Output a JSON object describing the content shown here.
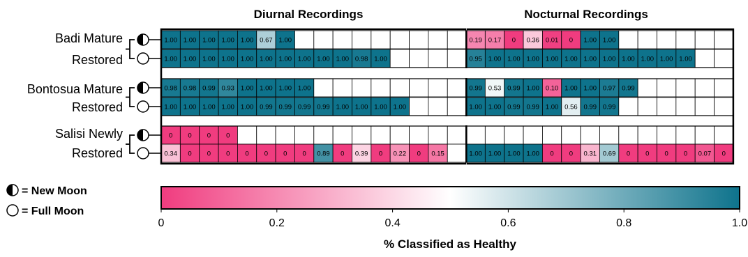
{
  "chart_data": {
    "type": "heatmap",
    "panel_titles": [
      "Diurnal Recordings",
      "Nocturnal Recordings"
    ],
    "groups": [
      {
        "label_top": "Badi Mature",
        "label_bottom": "Restored"
      },
      {
        "label_top": "Bontosua Mature",
        "label_bottom": "Restored"
      },
      {
        "label_top": "Salisi Newly",
        "label_bottom": "Restored"
      }
    ],
    "legend": {
      "new_moon": "= New Moon",
      "full_moon": "= Full Moon"
    },
    "colorbar": {
      "label": "% Classified as Healthy",
      "ticks": [
        "0",
        "0.2",
        "0.4",
        "0.6",
        "0.8",
        "1.0"
      ],
      "colors": {
        "low": "#f03c7f",
        "mid": "#ffffff",
        "high": "#0e738c"
      }
    },
    "rows": [
      {
        "site": "Badi",
        "moon": "new",
        "diurnal": [
          "1.00",
          "1.00",
          "1.00",
          "1.00",
          "1.00",
          "0.67",
          "1.00"
        ],
        "nocturnal": [
          "0.19",
          "0.17",
          "0",
          "0.36",
          "0.01",
          "0",
          "1.00",
          "1.00"
        ]
      },
      {
        "site": "Badi",
        "moon": "full",
        "diurnal": [
          "1.00",
          "1.00",
          "1.00",
          "1.00",
          "1.00",
          "1.00",
          "1.00",
          "1.00",
          "1.00",
          "1.00",
          "0.98",
          "1.00"
        ],
        "nocturnal": [
          "0.95",
          "1.00",
          "1.00",
          "1.00",
          "1.00",
          "1.00",
          "1.00",
          "1.00",
          "1.00",
          "1.00",
          "1.00",
          "1.00"
        ]
      },
      {
        "site": "Bontosua",
        "moon": "new",
        "diurnal": [
          "0.98",
          "0.98",
          "0.99",
          "0.93",
          "1.00",
          "1.00",
          "1.00",
          "1.00"
        ],
        "nocturnal": [
          "0.99",
          "0.53",
          "0.99",
          "1.00",
          "0.10",
          "1.00",
          "1.00",
          "0.97",
          "0.99"
        ]
      },
      {
        "site": "Bontosua",
        "moon": "full",
        "diurnal": [
          "1.00",
          "1.00",
          "1.00",
          "1.00",
          "1.00",
          "0.99",
          "0.99",
          "0.99",
          "0.99",
          "1.00",
          "1.00",
          "1.00",
          "1.00"
        ],
        "nocturnal": [
          "1.00",
          "1.00",
          "0.99",
          "0.99",
          "1.00",
          "0.56",
          "0.99",
          "0.99"
        ]
      },
      {
        "site": "Salisi",
        "moon": "new",
        "diurnal": [
          "0",
          "0",
          "0",
          "0"
        ],
        "nocturnal": []
      },
      {
        "site": "Salisi",
        "moon": "full",
        "diurnal": [
          "0.34",
          "0",
          "0",
          "0",
          "0",
          "0",
          "0",
          "0",
          "0.89",
          "0",
          "0.39",
          "0",
          "0.22",
          "0",
          "0.15"
        ],
        "nocturnal": [
          "1.00",
          "1.00",
          "1.00",
          "1.00",
          "0",
          "0",
          "0.31",
          "0.69",
          "0",
          "0",
          "0",
          "0",
          "0.07",
          "0"
        ]
      }
    ]
  }
}
